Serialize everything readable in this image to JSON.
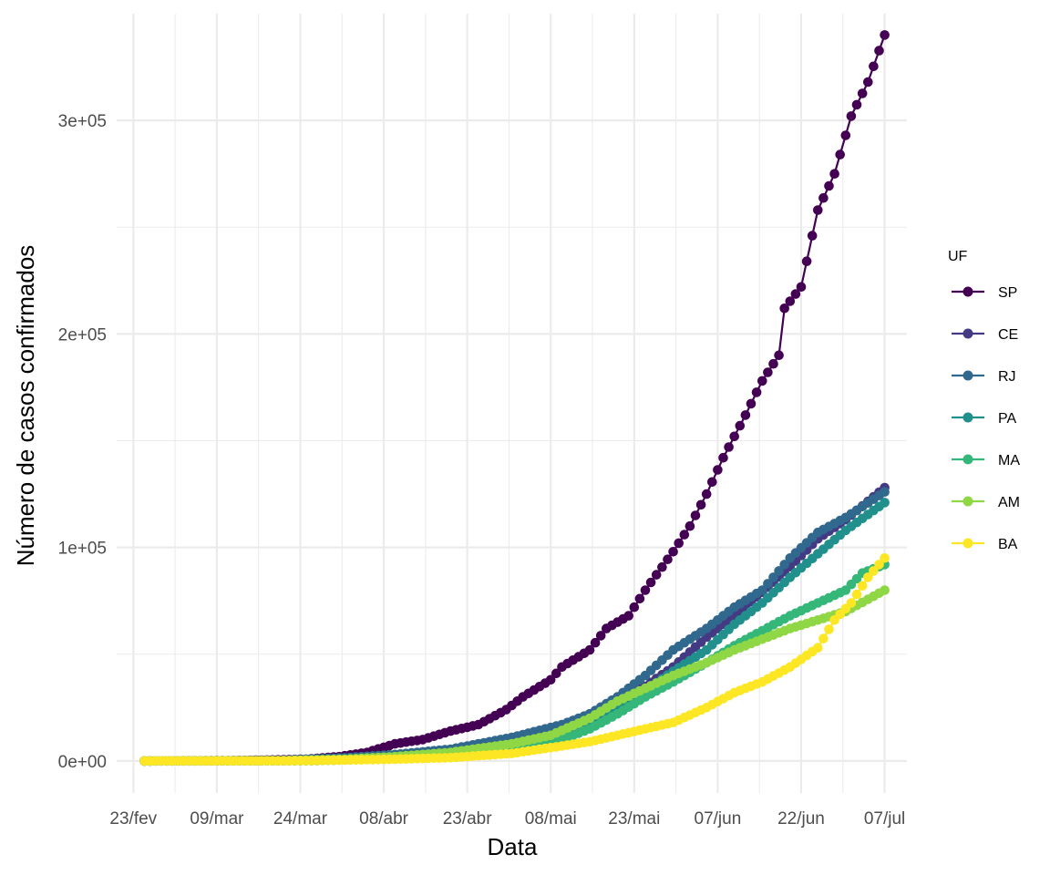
{
  "chart_data": {
    "type": "line",
    "title": "",
    "xlabel": "Data",
    "ylabel": "Número de casos confirmados",
    "xlim": [
      "2020-02-20",
      "2020-07-11"
    ],
    "ylim": [
      -15000,
      350000
    ],
    "x_ticks": [
      {
        "date": "2020-02-23",
        "label": "23/fev"
      },
      {
        "date": "2020-03-09",
        "label": "09/mar"
      },
      {
        "date": "2020-03-24",
        "label": "24/mar"
      },
      {
        "date": "2020-04-08",
        "label": "08/abr"
      },
      {
        "date": "2020-04-23",
        "label": "23/abr"
      },
      {
        "date": "2020-05-08",
        "label": "08/mai"
      },
      {
        "date": "2020-05-23",
        "label": "23/mai"
      },
      {
        "date": "2020-06-07",
        "label": "07/jun"
      },
      {
        "date": "2020-06-22",
        "label": "22/jun"
      },
      {
        "date": "2020-07-07",
        "label": "07/jul"
      }
    ],
    "y_ticks": [
      {
        "value": 0,
        "label": "0e+00"
      },
      {
        "value": 100000,
        "label": "1e+05"
      },
      {
        "value": 200000,
        "label": "2e+05"
      },
      {
        "value": 300000,
        "label": "3e+05"
      }
    ],
    "grid": true,
    "legend": {
      "title": "UF",
      "position": "right"
    },
    "series": [
      {
        "name": "SP",
        "color": "#440154",
        "points": [
          [
            "2020-02-25",
            0
          ],
          [
            "2020-03-10",
            100
          ],
          [
            "2020-03-20",
            500
          ],
          [
            "2020-03-25",
            800
          ],
          [
            "2020-03-31",
            2000
          ],
          [
            "2020-04-05",
            4000
          ],
          [
            "2020-04-10",
            8000
          ],
          [
            "2020-04-15",
            10000
          ],
          [
            "2020-04-20",
            14000
          ],
          [
            "2020-04-25",
            17000
          ],
          [
            "2020-04-30",
            24000
          ],
          [
            "2020-05-03",
            30000
          ],
          [
            "2020-05-08",
            38000
          ],
          [
            "2020-05-10",
            44000
          ],
          [
            "2020-05-15",
            52000
          ],
          [
            "2020-05-18",
            62000
          ],
          [
            "2020-05-22",
            68000
          ],
          [
            "2020-05-25",
            80000
          ],
          [
            "2020-05-30",
            98000
          ],
          [
            "2020-06-02",
            110000
          ],
          [
            "2020-06-05",
            125000
          ],
          [
            "2020-06-08",
            142000
          ],
          [
            "2020-06-12",
            162000
          ],
          [
            "2020-06-15",
            178000
          ],
          [
            "2020-06-18",
            190000
          ],
          [
            "2020-06-19",
            212000
          ],
          [
            "2020-06-22",
            222000
          ],
          [
            "2020-06-25",
            258000
          ],
          [
            "2020-06-28",
            275000
          ],
          [
            "2020-07-01",
            302000
          ],
          [
            "2020-07-04",
            318000
          ],
          [
            "2020-07-07",
            340000
          ]
        ]
      },
      {
        "name": "CE",
        "color": "#443A83",
        "points": [
          [
            "2020-02-25",
            0
          ],
          [
            "2020-03-20",
            100
          ],
          [
            "2020-04-01",
            1000
          ],
          [
            "2020-04-10",
            2500
          ],
          [
            "2020-04-20",
            5000
          ],
          [
            "2020-05-01",
            10000
          ],
          [
            "2020-05-10",
            16000
          ],
          [
            "2020-05-15",
            22000
          ],
          [
            "2020-05-20",
            28000
          ],
          [
            "2020-05-25",
            35000
          ],
          [
            "2020-05-30",
            44000
          ],
          [
            "2020-06-05",
            58000
          ],
          [
            "2020-06-10",
            68000
          ],
          [
            "2020-06-15",
            79000
          ],
          [
            "2020-06-20",
            91000
          ],
          [
            "2020-06-25",
            104000
          ],
          [
            "2020-06-30",
            113000
          ],
          [
            "2020-07-07",
            128000
          ]
        ]
      },
      {
        "name": "RJ",
        "color": "#31688E",
        "points": [
          [
            "2020-02-25",
            0
          ],
          [
            "2020-03-20",
            200
          ],
          [
            "2020-04-01",
            1500
          ],
          [
            "2020-04-10",
            3000
          ],
          [
            "2020-04-20",
            5500
          ],
          [
            "2020-05-01",
            11000
          ],
          [
            "2020-05-10",
            17000
          ],
          [
            "2020-05-15",
            22000
          ],
          [
            "2020-05-20",
            30000
          ],
          [
            "2020-05-25",
            40000
          ],
          [
            "2020-05-30",
            52000
          ],
          [
            "2020-06-05",
            62000
          ],
          [
            "2020-06-10",
            72000
          ],
          [
            "2020-06-15",
            80000
          ],
          [
            "2020-06-20",
            95000
          ],
          [
            "2020-06-25",
            107000
          ],
          [
            "2020-06-30",
            114000
          ],
          [
            "2020-07-07",
            126000
          ]
        ]
      },
      {
        "name": "PA",
        "color": "#21908C",
        "points": [
          [
            "2020-02-25",
            0
          ],
          [
            "2020-03-25",
            100
          ],
          [
            "2020-04-10",
            1000
          ],
          [
            "2020-04-20",
            2500
          ],
          [
            "2020-05-01",
            6000
          ],
          [
            "2020-05-10",
            11000
          ],
          [
            "2020-05-15",
            16000
          ],
          [
            "2020-05-20",
            24000
          ],
          [
            "2020-05-25",
            33000
          ],
          [
            "2020-05-30",
            42000
          ],
          [
            "2020-06-05",
            52000
          ],
          [
            "2020-06-10",
            64000
          ],
          [
            "2020-06-15",
            74000
          ],
          [
            "2020-06-20",
            86000
          ],
          [
            "2020-06-25",
            97000
          ],
          [
            "2020-06-30",
            108000
          ],
          [
            "2020-07-07",
            121000
          ]
        ]
      },
      {
        "name": "MA",
        "color": "#35B779",
        "points": [
          [
            "2020-02-25",
            0
          ],
          [
            "2020-03-25",
            100
          ],
          [
            "2020-04-10",
            1000
          ],
          [
            "2020-04-20",
            2000
          ],
          [
            "2020-05-01",
            5000
          ],
          [
            "2020-05-10",
            10000
          ],
          [
            "2020-05-15",
            15000
          ],
          [
            "2020-05-20",
            22000
          ],
          [
            "2020-05-25",
            30000
          ],
          [
            "2020-05-30",
            37000
          ],
          [
            "2020-06-05",
            46000
          ],
          [
            "2020-06-10",
            54000
          ],
          [
            "2020-06-15",
            61000
          ],
          [
            "2020-06-20",
            68000
          ],
          [
            "2020-06-25",
            74000
          ],
          [
            "2020-06-30",
            80000
          ],
          [
            "2020-07-03",
            88000
          ],
          [
            "2020-07-07",
            92000
          ]
        ]
      },
      {
        "name": "AM",
        "color": "#8FD744",
        "points": [
          [
            "2020-02-25",
            0
          ],
          [
            "2020-03-20",
            100
          ],
          [
            "2020-04-01",
            800
          ],
          [
            "2020-04-10",
            2000
          ],
          [
            "2020-04-20",
            4000
          ],
          [
            "2020-05-01",
            8000
          ],
          [
            "2020-05-08",
            12000
          ],
          [
            "2020-05-15",
            20000
          ],
          [
            "2020-05-20",
            28000
          ],
          [
            "2020-05-25",
            34000
          ],
          [
            "2020-05-30",
            40000
          ],
          [
            "2020-06-05",
            46000
          ],
          [
            "2020-06-10",
            52000
          ],
          [
            "2020-06-15",
            57000
          ],
          [
            "2020-06-20",
            62000
          ],
          [
            "2020-06-25",
            66000
          ],
          [
            "2020-06-30",
            70000
          ],
          [
            "2020-07-07",
            80000
          ]
        ]
      },
      {
        "name": "BA",
        "color": "#FDE725",
        "points": [
          [
            "2020-02-25",
            0
          ],
          [
            "2020-03-25",
            100
          ],
          [
            "2020-04-10",
            800
          ],
          [
            "2020-04-20",
            1500
          ],
          [
            "2020-05-01",
            3500
          ],
          [
            "2020-05-10",
            7000
          ],
          [
            "2020-05-15",
            9000
          ],
          [
            "2020-05-20",
            12000
          ],
          [
            "2020-05-25",
            15000
          ],
          [
            "2020-05-30",
            18000
          ],
          [
            "2020-06-05",
            25000
          ],
          [
            "2020-06-10",
            32000
          ],
          [
            "2020-06-15",
            37000
          ],
          [
            "2020-06-20",
            44000
          ],
          [
            "2020-06-25",
            53000
          ],
          [
            "2020-06-28",
            66000
          ],
          [
            "2020-07-01",
            74000
          ],
          [
            "2020-07-04",
            86000
          ],
          [
            "2020-07-07",
            95000
          ]
        ]
      }
    ]
  }
}
